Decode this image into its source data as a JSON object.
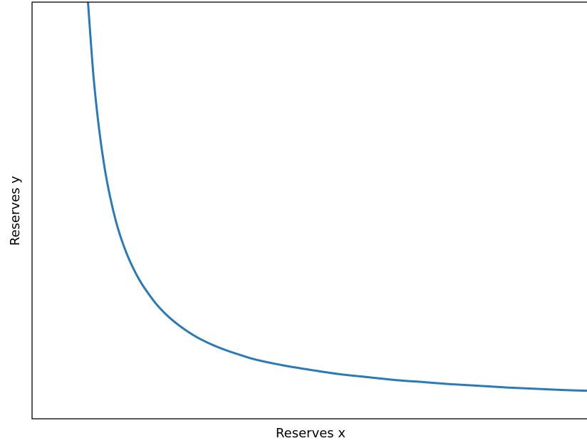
{
  "chart_data": {
    "type": "line",
    "title": "",
    "xlabel": "Reserves x",
    "ylabel": "Reserves y",
    "xticks": [],
    "yticks": [],
    "grid": false,
    "legend": "none",
    "xlim": [
      0,
      10
    ],
    "ylim": [
      0,
      10
    ],
    "series": [
      {
        "color": "#2a7ab9",
        "x": [
          1.0,
          1.1,
          1.2,
          1.3,
          1.4,
          1.5,
          1.6,
          1.7,
          1.8,
          1.9,
          2.0,
          2.2,
          2.4,
          2.6,
          2.8,
          3.0,
          3.25,
          3.5,
          3.75,
          4.0,
          4.5,
          5.0,
          5.5,
          6.0,
          6.5,
          7.0,
          7.5,
          8.0,
          8.5,
          9.0,
          9.5,
          10.0
        ],
        "y": [
          10.0,
          8.2,
          6.94,
          6.0,
          5.3,
          4.74,
          4.3,
          3.94,
          3.64,
          3.38,
          3.16,
          2.79,
          2.5,
          2.27,
          2.08,
          1.92,
          1.76,
          1.63,
          1.52,
          1.42,
          1.28,
          1.17,
          1.07,
          1.0,
          0.93,
          0.88,
          0.83,
          0.79,
          0.75,
          0.72,
          0.69,
          0.67
        ]
      }
    ]
  }
}
